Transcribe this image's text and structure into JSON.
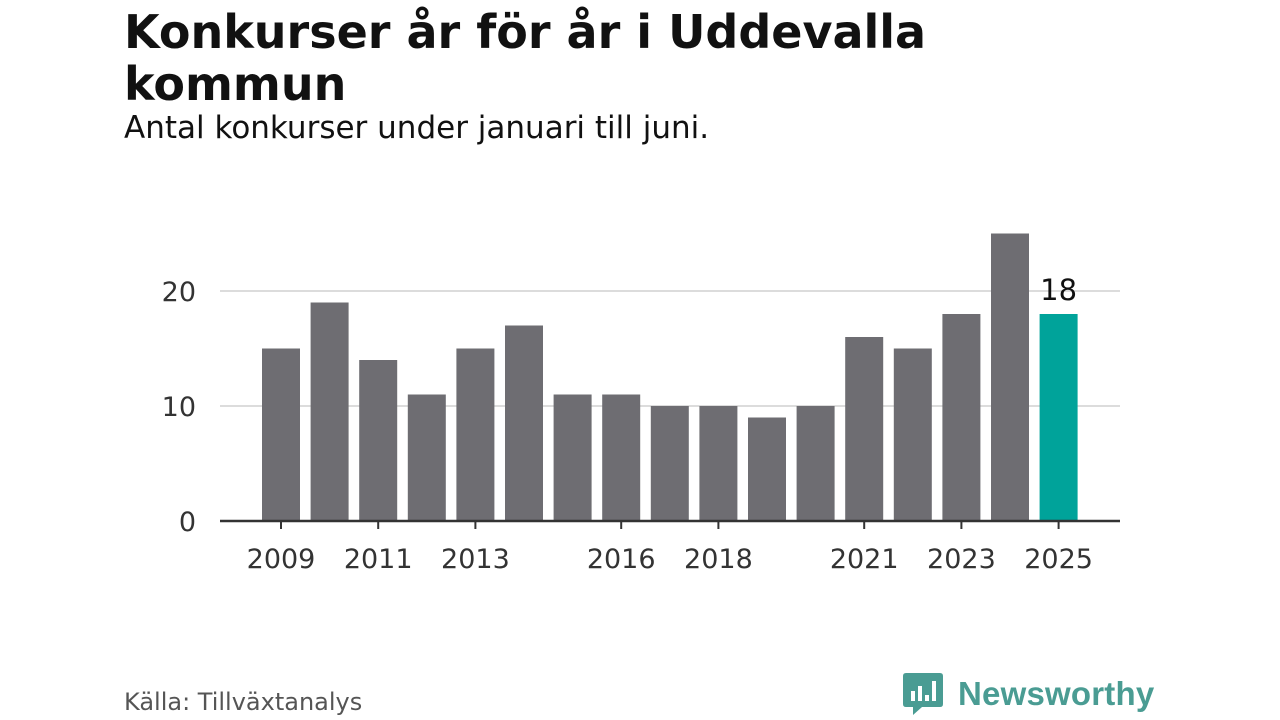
{
  "header": {
    "title": "Konkurser år för år i Uddevalla kommun",
    "subtitle": "Antal konkurser under januari till juni."
  },
  "footer": {
    "source": "Källa: Tillväxtanalys",
    "brand": "Newsworthy"
  },
  "colors": {
    "bar": "#6e6d72",
    "highlight": "#00a39a",
    "grid": "#dcdcdc",
    "axis": "#333333",
    "text": "#333333",
    "brand": "#4a9c93"
  },
  "chart_data": {
    "type": "bar",
    "title": "Konkurser år för år i Uddevalla kommun",
    "subtitle": "Antal konkurser under januari till juni.",
    "categories": [
      "2009",
      "2010",
      "2011",
      "2012",
      "2013",
      "2014",
      "2015",
      "2016",
      "2017",
      "2018",
      "2019",
      "2020",
      "2021",
      "2022",
      "2023",
      "2024",
      "2025"
    ],
    "values": [
      15,
      19,
      14,
      11,
      15,
      17,
      11,
      11,
      10,
      10,
      9,
      10,
      16,
      15,
      18,
      25,
      18
    ],
    "x_tick_labels": [
      "2009",
      "2011",
      "2013",
      "2016",
      "2018",
      "2021",
      "2023",
      "2025"
    ],
    "y_ticks": [
      0,
      10,
      20
    ],
    "ylim": [
      0,
      25
    ],
    "grid": true,
    "highlight_category": "2025",
    "data_labels": [
      {
        "category": "2025",
        "value": "18"
      }
    ],
    "xlabel": "",
    "ylabel": ""
  }
}
